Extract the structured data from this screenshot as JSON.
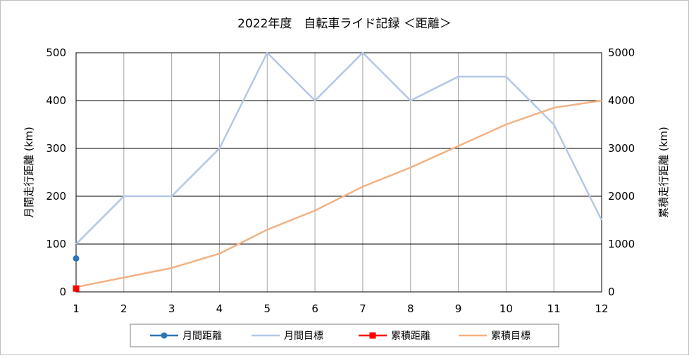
{
  "chart_data": {
    "type": "line",
    "title": "2022年度　自転車ライド記録 ＜距離＞",
    "x": [
      1,
      2,
      3,
      4,
      5,
      6,
      7,
      8,
      9,
      10,
      11,
      12
    ],
    "x_ticks": [
      "1",
      "2",
      "3",
      "4",
      "5",
      "6",
      "7",
      "8",
      "9",
      "10",
      "11",
      "12"
    ],
    "y_left": {
      "label": "月間走行距離 (km)",
      "range": [
        0,
        500
      ],
      "ticks": [
        "0",
        "100",
        "200",
        "300",
        "400",
        "500"
      ]
    },
    "y_right": {
      "label": "累積走行距離 (km)",
      "range": [
        0,
        5000
      ],
      "ticks": [
        "0",
        "1000",
        "2000",
        "3000",
        "4000",
        "5000"
      ]
    },
    "grid": true,
    "legend_position": "bottom",
    "series": [
      {
        "name": "月間距離",
        "axis": "left",
        "marker": "circle",
        "color": "#2e75b6",
        "x": [
          1
        ],
        "values": [
          70
        ]
      },
      {
        "name": "月間目標",
        "axis": "left",
        "marker": "none",
        "color": "#b4c7e7",
        "x": [
          1,
          2,
          3,
          4,
          5,
          6,
          7,
          8,
          9,
          10,
          11,
          12
        ],
        "values": [
          100,
          200,
          200,
          300,
          500,
          400,
          500,
          400,
          450,
          450,
          350,
          150
        ]
      },
      {
        "name": "累積距離",
        "axis": "right",
        "marker": "square",
        "color": "#ff0000",
        "x": [
          1
        ],
        "values": [
          70
        ]
      },
      {
        "name": "累積目標",
        "axis": "right",
        "marker": "none",
        "color": "#f4b183",
        "x": [
          1,
          2,
          3,
          4,
          5,
          6,
          7,
          8,
          9,
          10,
          11,
          12
        ],
        "values": [
          100,
          300,
          500,
          800,
          1300,
          1700,
          2200,
          2600,
          3050,
          3500,
          3850,
          4000
        ]
      }
    ]
  }
}
